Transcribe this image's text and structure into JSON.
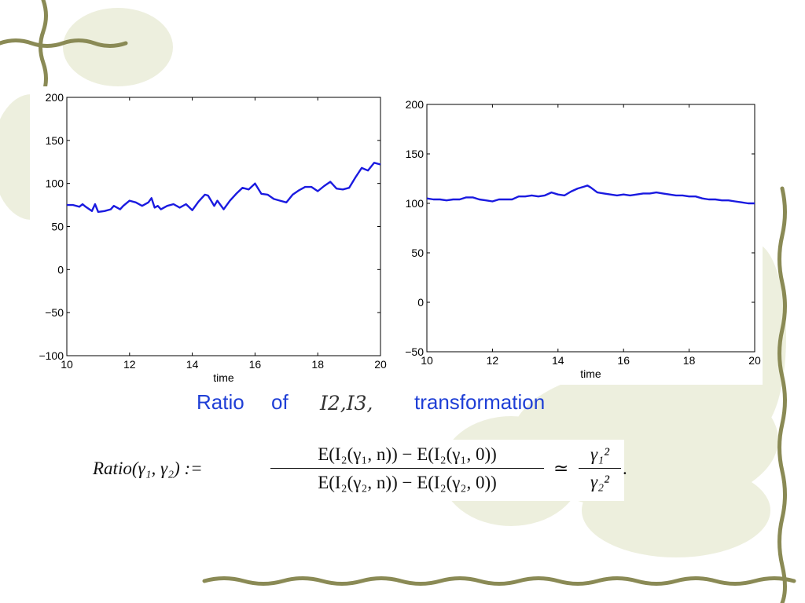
{
  "colors": {
    "line": "#1a1ae0",
    "caption": "#1f3fd6",
    "vine": "#8a8a55",
    "leaf": "#d9dcb8"
  },
  "caption": {
    "part1": "Ratio",
    "part2": "of",
    "math": "I2,I3,",
    "part3": "transformation"
  },
  "formula": {
    "lhs": "Ratio(γ₁, γ₂) :=",
    "numerator": "E(I₂(γ₁, n)) − E(I₂(γ₁, 0))",
    "denominator": "E(I₂(γ₂, n)) − E(I₂(γ₂, 0))",
    "approx": "≃",
    "rhs_num": "γ₁²",
    "rhs_den": "γ₂²",
    "trailing": "."
  },
  "chart_data": [
    {
      "type": "line",
      "xlabel": "time",
      "ylabel": "",
      "xlim": [
        10,
        20
      ],
      "ylim": [
        -100,
        200
      ],
      "xticks": [
        "10",
        "12",
        "14",
        "16",
        "18",
        "20"
      ],
      "yticks": [
        "−100",
        "−50",
        "0",
        "50",
        "100",
        "150",
        "200"
      ],
      "series": [
        {
          "x": [
            10.0,
            10.2,
            10.4,
            10.5,
            10.6,
            10.8,
            10.9,
            11.0,
            11.2,
            11.4,
            11.5,
            11.7,
            11.8,
            12.0,
            12.2,
            12.4,
            12.6,
            12.7,
            12.8,
            12.9,
            13.0,
            13.2,
            13.4,
            13.6,
            13.8,
            14.0,
            14.2,
            14.4,
            14.5,
            14.7,
            14.8,
            15.0,
            15.2,
            15.4,
            15.6,
            15.8,
            16.0,
            16.2,
            16.4,
            16.6,
            16.8,
            17.0,
            17.2,
            17.4,
            17.6,
            17.8,
            18.0,
            18.2,
            18.4,
            18.6,
            18.8,
            19.0,
            19.2,
            19.4,
            19.6,
            19.8,
            20.0
          ],
          "y": [
            75,
            75,
            73,
            76,
            73,
            68,
            76,
            67,
            68,
            70,
            74,
            70,
            74,
            80,
            78,
            74,
            78,
            83,
            72,
            74,
            70,
            74,
            76,
            72,
            76,
            69,
            79,
            87,
            86,
            74,
            80,
            70,
            80,
            88,
            95,
            93,
            100,
            88,
            87,
            82,
            80,
            78,
            87,
            92,
            96,
            96,
            91,
            97,
            102,
            94,
            93,
            95,
            107,
            118,
            115,
            124,
            122
          ]
        }
      ]
    },
    {
      "type": "line",
      "xlabel": "time",
      "ylabel": "",
      "xlim": [
        10,
        20
      ],
      "ylim": [
        -50,
        200
      ],
      "xticks": [
        "10",
        "12",
        "14",
        "16",
        "18",
        "20"
      ],
      "yticks": [
        "−50",
        "0",
        "50",
        "100",
        "150",
        "200"
      ],
      "series": [
        {
          "x": [
            10.0,
            10.2,
            10.4,
            10.6,
            10.8,
            11.0,
            11.2,
            11.4,
            11.6,
            11.8,
            12.0,
            12.2,
            12.4,
            12.6,
            12.8,
            13.0,
            13.2,
            13.4,
            13.6,
            13.8,
            14.0,
            14.2,
            14.4,
            14.6,
            14.8,
            14.9,
            15.0,
            15.2,
            15.4,
            15.6,
            15.8,
            16.0,
            16.2,
            16.4,
            16.6,
            16.8,
            17.0,
            17.2,
            17.4,
            17.6,
            17.8,
            18.0,
            18.2,
            18.4,
            18.6,
            18.8,
            19.0,
            19.2,
            19.4,
            19.6,
            19.8,
            20.0
          ],
          "y": [
            105,
            104,
            104,
            103,
            104,
            104,
            106,
            106,
            104,
            103,
            102,
            104,
            104,
            104,
            107,
            107,
            108,
            107,
            108,
            111,
            109,
            108,
            112,
            115,
            117,
            118,
            116,
            111,
            110,
            109,
            108,
            109,
            108,
            109,
            110,
            110,
            111,
            110,
            109,
            108,
            108,
            107,
            107,
            105,
            104,
            104,
            103,
            103,
            102,
            101,
            100,
            100
          ]
        }
      ]
    }
  ]
}
